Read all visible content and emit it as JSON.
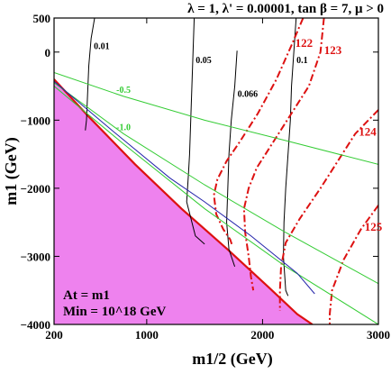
{
  "chart_data": {
    "type": "line",
    "title": "λ = 1, λ' = 0.00001, tan β = 7, μ > 0",
    "xlabel": "m1/2 (GeV)",
    "ylabel": "m1 (GeV)",
    "xlim": [
      200,
      3000
    ],
    "ylim": [
      -4000,
      500
    ],
    "x_ticks": [
      "200",
      "1000",
      "2000",
      "3000"
    ],
    "y_ticks": [
      "500",
      "0",
      "−1000",
      "−2000",
      "−3000",
      "−4000"
    ],
    "annotations": [
      "At = m1",
      "Min = 10^18 GeV"
    ],
    "excluded_region_color": "#ee82ee",
    "series": [
      {
        "name": "0.01",
        "color": "#000000",
        "style": "solid",
        "points": [
          [
            550,
            500
          ],
          [
            520,
            200
          ],
          [
            500,
            -200
          ],
          [
            490,
            -600
          ],
          [
            480,
            -1000
          ],
          [
            470,
            -1150
          ]
        ]
      },
      {
        "name": "0.05",
        "color": "#000000",
        "style": "solid",
        "points": [
          [
            1410,
            500
          ],
          [
            1400,
            0
          ],
          [
            1390,
            -500
          ],
          [
            1380,
            -1000
          ],
          [
            1370,
            -1500
          ],
          [
            1360,
            -1800
          ],
          [
            1345,
            -2200
          ],
          [
            1420,
            -2700
          ],
          [
            1500,
            -2820
          ]
        ]
      },
      {
        "name": "0.066",
        "color": "#000000",
        "style": "solid",
        "points": [
          [
            1780,
            20
          ],
          [
            1760,
            -500
          ],
          [
            1730,
            -1000
          ],
          [
            1710,
            -1500
          ],
          [
            1700,
            -2000
          ],
          [
            1690,
            -2500
          ],
          [
            1710,
            -2900
          ],
          [
            1760,
            -3150
          ]
        ]
      },
      {
        "name": "0.1",
        "color": "#000000",
        "style": "solid",
        "points": [
          [
            2290,
            500
          ],
          [
            2270,
            0
          ],
          [
            2250,
            -500
          ],
          [
            2240,
            -1000
          ],
          [
            2220,
            -1500
          ],
          [
            2200,
            -2000
          ],
          [
            2185,
            -2500
          ],
          [
            2180,
            -3000
          ],
          [
            2200,
            -3500
          ],
          [
            2220,
            -3580
          ]
        ]
      },
      {
        "name": "122",
        "color": "#dd1111",
        "style": "dashdot",
        "points": [
          [
            2350,
            500
          ],
          [
            2250,
            100
          ],
          [
            2120,
            -400
          ],
          [
            1960,
            -900
          ],
          [
            1810,
            -1300
          ],
          [
            1690,
            -1600
          ],
          [
            1610,
            -1870
          ],
          [
            1580,
            -2100
          ],
          [
            1600,
            -2380
          ],
          [
            1660,
            -2600
          ],
          [
            1720,
            -2750
          ],
          [
            1740,
            -2850
          ]
        ]
      },
      {
        "name": "123",
        "color": "#dd1111",
        "style": "dashdot",
        "points": [
          [
            2530,
            500
          ],
          [
            2500,
            0
          ],
          [
            2400,
            -500
          ],
          [
            2250,
            -900
          ],
          [
            2100,
            -1300
          ],
          [
            1950,
            -1700
          ],
          [
            1880,
            -2000
          ],
          [
            1840,
            -2300
          ],
          [
            1850,
            -2650
          ],
          [
            1880,
            -3000
          ],
          [
            1900,
            -3300
          ],
          [
            1920,
            -3500
          ]
        ]
      },
      {
        "name": "124",
        "color": "#dd1111",
        "style": "dashdot",
        "points": [
          [
            3000,
            -850
          ],
          [
            2800,
            -1200
          ],
          [
            2650,
            -1600
          ],
          [
            2500,
            -2000
          ],
          [
            2320,
            -2450
          ],
          [
            2200,
            -2800
          ],
          [
            2160,
            -3150
          ],
          [
            2150,
            -3500
          ],
          [
            2150,
            -3800
          ]
        ]
      },
      {
        "name": "125",
        "color": "#dd1111",
        "style": "dashdot",
        "points": [
          [
            3000,
            -2250
          ],
          [
            2850,
            -2600
          ],
          [
            2700,
            -3050
          ],
          [
            2600,
            -3500
          ],
          [
            2580,
            -3850
          ],
          [
            2580,
            -4000
          ]
        ]
      },
      {
        "name": "-0.5",
        "color": "#33cc33",
        "style": "solid",
        "points": [
          [
            200,
            -300
          ],
          [
            800,
            -650
          ],
          [
            1500,
            -1000
          ],
          [
            2200,
            -1300
          ],
          [
            3000,
            -1650
          ]
        ]
      },
      {
        "name": "-1.0",
        "color": "#33cc33",
        "style": "solid",
        "points": [
          [
            200,
            -450
          ],
          [
            800,
            -1200
          ],
          [
            1500,
            -1950
          ],
          [
            2200,
            -2650
          ],
          [
            3000,
            -3400
          ]
        ]
      },
      {
        "name": "",
        "color": "#33cc33",
        "style": "solid",
        "points": [
          [
            200,
            -500
          ],
          [
            800,
            -1350
          ],
          [
            1500,
            -2300
          ],
          [
            2200,
            -3150
          ],
          [
            3000,
            -4000
          ]
        ]
      },
      {
        "name": "",
        "color": "#2222aa",
        "style": "solid",
        "points": [
          [
            200,
            -430
          ],
          [
            700,
            -1150
          ],
          [
            1200,
            -1850
          ],
          [
            1500,
            -2200
          ],
          [
            1900,
            -2700
          ],
          [
            2300,
            -3250
          ],
          [
            2450,
            -3550
          ]
        ]
      }
    ],
    "excluded_boundary": [
      [
        200,
        -400
      ],
      [
        500,
        -950
      ],
      [
        900,
        -1650
      ],
      [
        1300,
        -2300
      ],
      [
        1700,
        -2900
      ],
      [
        2050,
        -3450
      ],
      [
        2300,
        -3850
      ],
      [
        2430,
        -4000
      ]
    ],
    "grid": false
  }
}
